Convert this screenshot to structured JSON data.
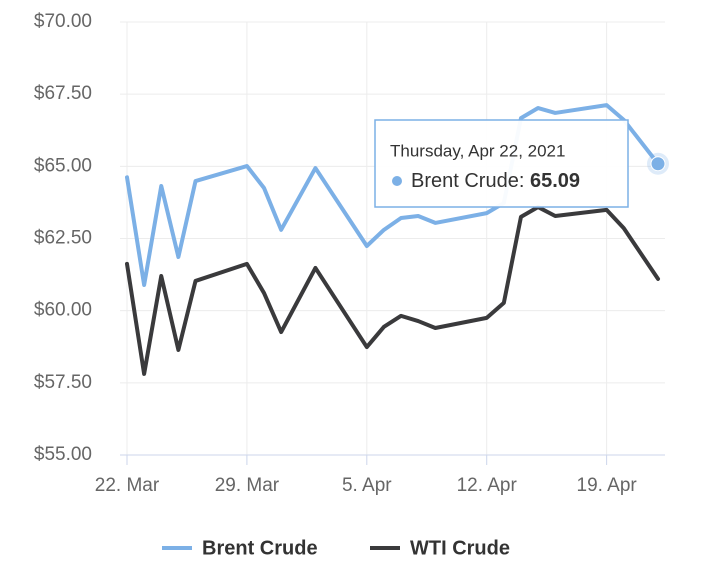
{
  "chart_data": {
    "type": "line",
    "x": [
      "2021-03-22",
      "2021-03-23",
      "2021-03-24",
      "2021-03-25",
      "2021-03-26",
      "2021-03-29",
      "2021-03-30",
      "2021-03-31",
      "2021-04-02",
      "2021-04-05",
      "2021-04-06",
      "2021-04-07",
      "2021-04-08",
      "2021-04-09",
      "2021-04-12",
      "2021-04-13",
      "2021-04-14",
      "2021-04-15",
      "2021-04-16",
      "2021-04-19",
      "2021-04-20",
      "2021-04-22"
    ],
    "series": [
      {
        "name": "Brent Crude",
        "color": "#7cb0e6",
        "values": [
          64.62,
          60.89,
          64.32,
          61.86,
          64.49,
          65.01,
          64.25,
          62.8,
          64.94,
          62.24,
          62.8,
          63.21,
          63.28,
          63.04,
          63.38,
          63.73,
          66.67,
          67.02,
          66.85,
          67.12,
          66.61,
          65.09
        ]
      },
      {
        "name": "WTI Crude",
        "color": "#3a3a3c",
        "values": [
          61.62,
          57.81,
          61.2,
          58.64,
          61.03,
          61.62,
          60.61,
          59.26,
          61.48,
          58.74,
          59.44,
          59.82,
          59.64,
          59.4,
          59.75,
          60.27,
          63.25,
          63.59,
          63.28,
          63.49,
          62.86,
          61.1
        ]
      }
    ],
    "xlim": [
      "2021-03-22",
      "2021-04-22"
    ],
    "xticks": [
      {
        "value": "2021-03-22",
        "label": "22. Mar"
      },
      {
        "value": "2021-03-29",
        "label": "29. Mar"
      },
      {
        "value": "2021-04-05",
        "label": "5. Apr"
      },
      {
        "value": "2021-04-12",
        "label": "12. Apr"
      },
      {
        "value": "2021-04-19",
        "label": "19. Apr"
      }
    ],
    "ylim": [
      55,
      70
    ],
    "yticks": [
      {
        "value": 55,
        "label": "$55.00"
      },
      {
        "value": 57.5,
        "label": "$57.50"
      },
      {
        "value": 60,
        "label": "$60.00"
      },
      {
        "value": 62.5,
        "label": "$62.50"
      },
      {
        "value": 65,
        "label": "$65.00"
      },
      {
        "value": 67.5,
        "label": "$67.50"
      },
      {
        "value": 70,
        "label": "$70.00"
      }
    ],
    "grid": true,
    "legend": "bottom",
    "tooltip": {
      "title": "Thursday, Apr 22, 2021",
      "series_label": "Brent Crude:"
    }
  }
}
